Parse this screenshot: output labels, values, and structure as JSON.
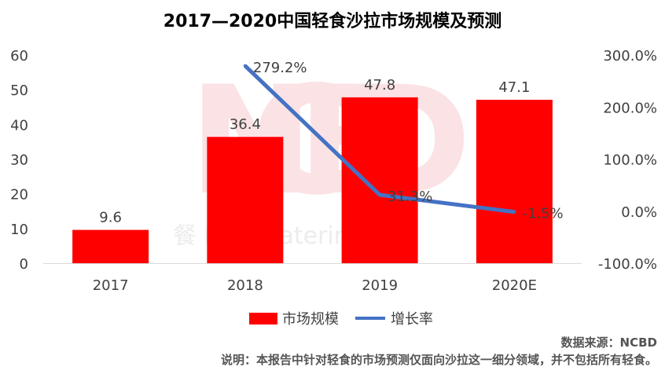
{
  "watermark": {
    "logo": "NCBD",
    "text": "餐 New Catering Big"
  },
  "chart_data": {
    "type": "bar",
    "title": "2017—2020中国轻食沙拉市场规模及预测",
    "categories": [
      "2017",
      "2018",
      "2019",
      "2020E"
    ],
    "series": [
      {
        "name": "市场规模",
        "type": "bar",
        "axis": "left",
        "color": "#ff0000",
        "values": [
          9.6,
          36.4,
          47.8,
          47.1
        ],
        "labels": [
          "9.6",
          "36.4",
          "47.8",
          "47.1"
        ]
      },
      {
        "name": "增长率",
        "type": "line",
        "axis": "right",
        "color": "#4472c4",
        "values": [
          null,
          279.2,
          31.3,
          -1.5
        ],
        "labels": [
          "",
          "279.2%",
          "31.3%",
          "-1.5%"
        ]
      }
    ],
    "y_left": {
      "min": 0,
      "max": 60,
      "step": 10,
      "ticks": [
        "0",
        "10",
        "20",
        "30",
        "40",
        "50",
        "60"
      ]
    },
    "y_right": {
      "min": -100,
      "max": 300,
      "step": 100,
      "ticks": [
        "-100.0%",
        "0.0%",
        "100.0%",
        "200.0%",
        "300.0%"
      ]
    },
    "grid": false,
    "legend_position": "bottom"
  },
  "footer": {
    "source": "数据来源：NCBD",
    "note": "说明：本报告中针对轻食的市场预测仅面向沙拉这一细分领域，并不包括所有轻食。"
  }
}
